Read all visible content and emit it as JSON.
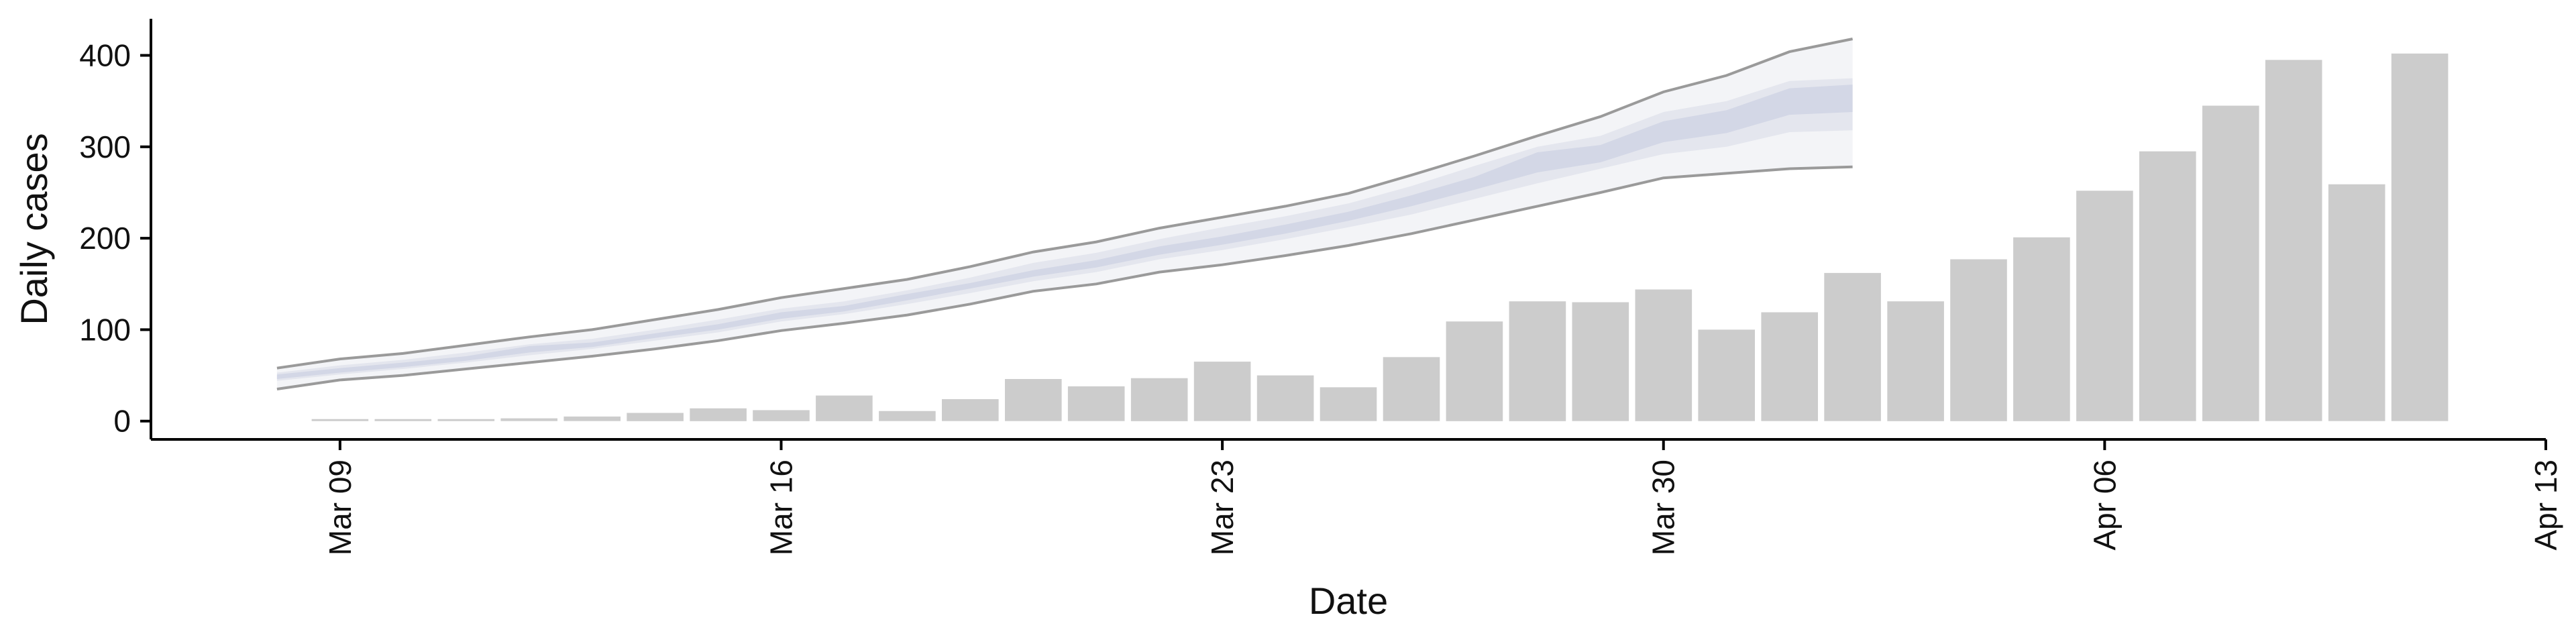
{
  "chart_data": {
    "type": "bar",
    "xlabel": "Date",
    "ylabel": "Daily cases",
    "xlim": [
      "2020-03-06",
      "2020-04-13"
    ],
    "ylim": [
      -20,
      440
    ],
    "grid": false,
    "x_ticks": [
      {
        "date": "2020-03-09",
        "label": "Mar 09"
      },
      {
        "date": "2020-03-16",
        "label": "Mar 16"
      },
      {
        "date": "2020-03-23",
        "label": "Mar 23"
      },
      {
        "date": "2020-03-30",
        "label": "Mar 30"
      },
      {
        "date": "2020-04-06",
        "label": "Apr 06"
      },
      {
        "date": "2020-04-13",
        "label": "Apr 13"
      }
    ],
    "y_ticks": [
      0,
      100,
      200,
      300,
      400
    ],
    "bars": {
      "color": "#cccccc",
      "dates": [
        "2020-03-09",
        "2020-03-10",
        "2020-03-11",
        "2020-03-12",
        "2020-03-13",
        "2020-03-14",
        "2020-03-15",
        "2020-03-16",
        "2020-03-17",
        "2020-03-18",
        "2020-03-19",
        "2020-03-20",
        "2020-03-21",
        "2020-03-22",
        "2020-03-23",
        "2020-03-24",
        "2020-03-25",
        "2020-03-26",
        "2020-03-27",
        "2020-03-28",
        "2020-03-29",
        "2020-03-30",
        "2020-03-31",
        "2020-04-01",
        "2020-04-02",
        "2020-04-03",
        "2020-04-04",
        "2020-04-05",
        "2020-04-06",
        "2020-04-07",
        "2020-04-08",
        "2020-04-09",
        "2020-04-10",
        "2020-04-11"
      ],
      "values": [
        1,
        0,
        0,
        3,
        5,
        9,
        14,
        12,
        28,
        11,
        24,
        46,
        38,
        47,
        65,
        50,
        37,
        70,
        109,
        131,
        130,
        144,
        100,
        119,
        162,
        131,
        177,
        201,
        252,
        295,
        345,
        395,
        259,
        402
      ]
    },
    "forecast": {
      "colors": {
        "outer": "#f3f4f7",
        "middle": "#e4e6ee",
        "inner": "#d3d7e6",
        "bound": "#9a9a9a"
      },
      "dates": [
        "2020-03-08",
        "2020-03-09",
        "2020-03-10",
        "2020-03-11",
        "2020-03-12",
        "2020-03-13",
        "2020-03-14",
        "2020-03-15",
        "2020-03-16",
        "2020-03-17",
        "2020-03-18",
        "2020-03-19",
        "2020-03-20",
        "2020-03-21",
        "2020-03-22",
        "2020-03-23",
        "2020-03-24",
        "2020-03-25",
        "2020-03-26",
        "2020-03-27",
        "2020-03-28",
        "2020-03-29",
        "2020-03-30",
        "2020-03-31",
        "2020-04-01",
        "2020-04-02"
      ],
      "lower": [
        35,
        45,
        50,
        57,
        64,
        71,
        79,
        88,
        99,
        107,
        116,
        128,
        142,
        150,
        163,
        171,
        181,
        192,
        205,
        220,
        235,
        250,
        266,
        271,
        276,
        278
      ],
      "mid_lo": [
        44,
        51,
        57,
        64,
        72,
        79,
        88,
        97,
        109,
        117,
        128,
        140,
        153,
        163,
        177,
        187,
        199,
        212,
        226,
        243,
        260,
        276,
        292,
        300,
        316,
        318
      ],
      "inner_lo": [
        46,
        53,
        59,
        66,
        75,
        81,
        91,
        100,
        112,
        120,
        132,
        145,
        158,
        168,
        182,
        193,
        205,
        219,
        235,
        253,
        272,
        283,
        305,
        315,
        335,
        338
      ],
      "inner_hi": [
        51,
        58,
        64,
        71,
        82,
        86,
        96,
        106,
        119,
        126,
        139,
        151,
        165,
        176,
        191,
        202,
        215,
        229,
        247,
        267,
        294,
        302,
        328,
        340,
        364,
        368
      ],
      "mid_hi": [
        53,
        61,
        67,
        75,
        84,
        90,
        100,
        111,
        123,
        131,
        143,
        157,
        173,
        184,
        199,
        212,
        224,
        238,
        257,
        279,
        300,
        312,
        338,
        350,
        372,
        375
      ],
      "upper": [
        58,
        68,
        74,
        83,
        92,
        100,
        111,
        122,
        135,
        145,
        155,
        169,
        185,
        196,
        211,
        223,
        235,
        249,
        269,
        290,
        312,
        333,
        360,
        378,
        404,
        418
      ]
    }
  }
}
